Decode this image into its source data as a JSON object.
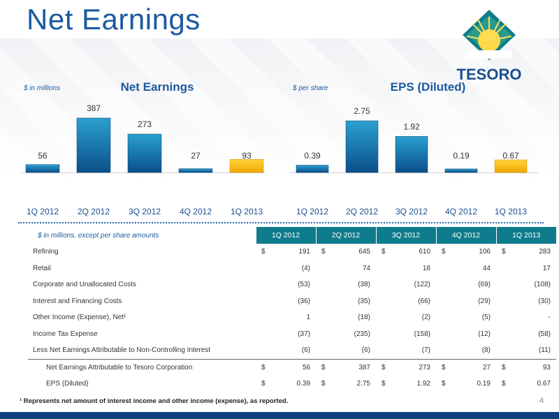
{
  "page": {
    "title": "Net Earnings",
    "page_number": "4"
  },
  "logo": {
    "text": "TESORO"
  },
  "chart_data": [
    {
      "type": "bar",
      "title": "Net Earnings",
      "unit_note": "$ in millions",
      "categories": [
        "1Q 2012",
        "2Q 2012",
        "3Q 2012",
        "4Q 2012",
        "1Q 2013"
      ],
      "values": [
        56,
        387,
        273,
        27,
        93
      ],
      "labels": [
        "56",
        "387",
        "273",
        "27",
        "93"
      ],
      "highlight_index": 4,
      "colors": {
        "bar": "#1a73ad",
        "highlight": "#f5b400"
      }
    },
    {
      "type": "bar",
      "title": "EPS (Diluted)",
      "unit_note": "$ per share",
      "categories": [
        "1Q 2012",
        "2Q 2012",
        "3Q 2012",
        "4Q 2012",
        "1Q 2013"
      ],
      "values": [
        0.39,
        2.75,
        1.92,
        0.19,
        0.67
      ],
      "labels": [
        "0.39",
        "2.75",
        "1.92",
        "0.19",
        "0.67"
      ],
      "highlight_index": 4,
      "colors": {
        "bar": "#1a73ad",
        "highlight": "#f5b400"
      }
    }
  ],
  "table": {
    "unit_note": "$ in millions, except per share amounts",
    "columns": [
      "1Q 2012",
      "2Q 2012",
      "3Q 2012",
      "4Q 2012",
      "1Q 2013"
    ],
    "rows": [
      {
        "label": "Refining",
        "dollar": true,
        "values": [
          "191",
          "645",
          "610",
          "106",
          "283"
        ]
      },
      {
        "label": "Retail",
        "dollar": false,
        "values": [
          "(4)",
          "74",
          "18",
          "44",
          "17"
        ]
      },
      {
        "label": "Corporate and Unallocated Costs",
        "dollar": false,
        "values": [
          "(53)",
          "(38)",
          "(122)",
          "(69)",
          "(108)"
        ]
      },
      {
        "label": "Interest and Financing Costs",
        "dollar": false,
        "values": [
          "(36)",
          "(35)",
          "(66)",
          "(29)",
          "(30)"
        ]
      },
      {
        "label": "Other Income (Expense), Net¹",
        "dollar": false,
        "values": [
          "1",
          "(18)",
          "(2)",
          "(5)",
          "-"
        ]
      },
      {
        "label": "Income Tax Expense",
        "dollar": false,
        "values": [
          "(37)",
          "(235)",
          "(158)",
          "(12)",
          "(58)"
        ]
      },
      {
        "label": "Less Net Earnings Attributable to Non-Controlling Interest",
        "dollar": false,
        "values": [
          "(6)",
          "(6)",
          "(7)",
          "(8)",
          "(11)"
        ]
      },
      {
        "label": "Net  Earnings Attributable to Tesoro Corporation",
        "dollar": true,
        "indent": true,
        "values": [
          "56",
          "387",
          "273",
          "27",
          "93"
        ]
      },
      {
        "label": "EPS (Diluted)",
        "dollar": true,
        "indent": true,
        "values": [
          "0.39",
          "2.75",
          "1.92",
          "0.19",
          "0.67"
        ]
      }
    ],
    "currency_symbol": "$"
  },
  "footnote": "¹ Represents net amount of interest income and other income (expense), as reported."
}
